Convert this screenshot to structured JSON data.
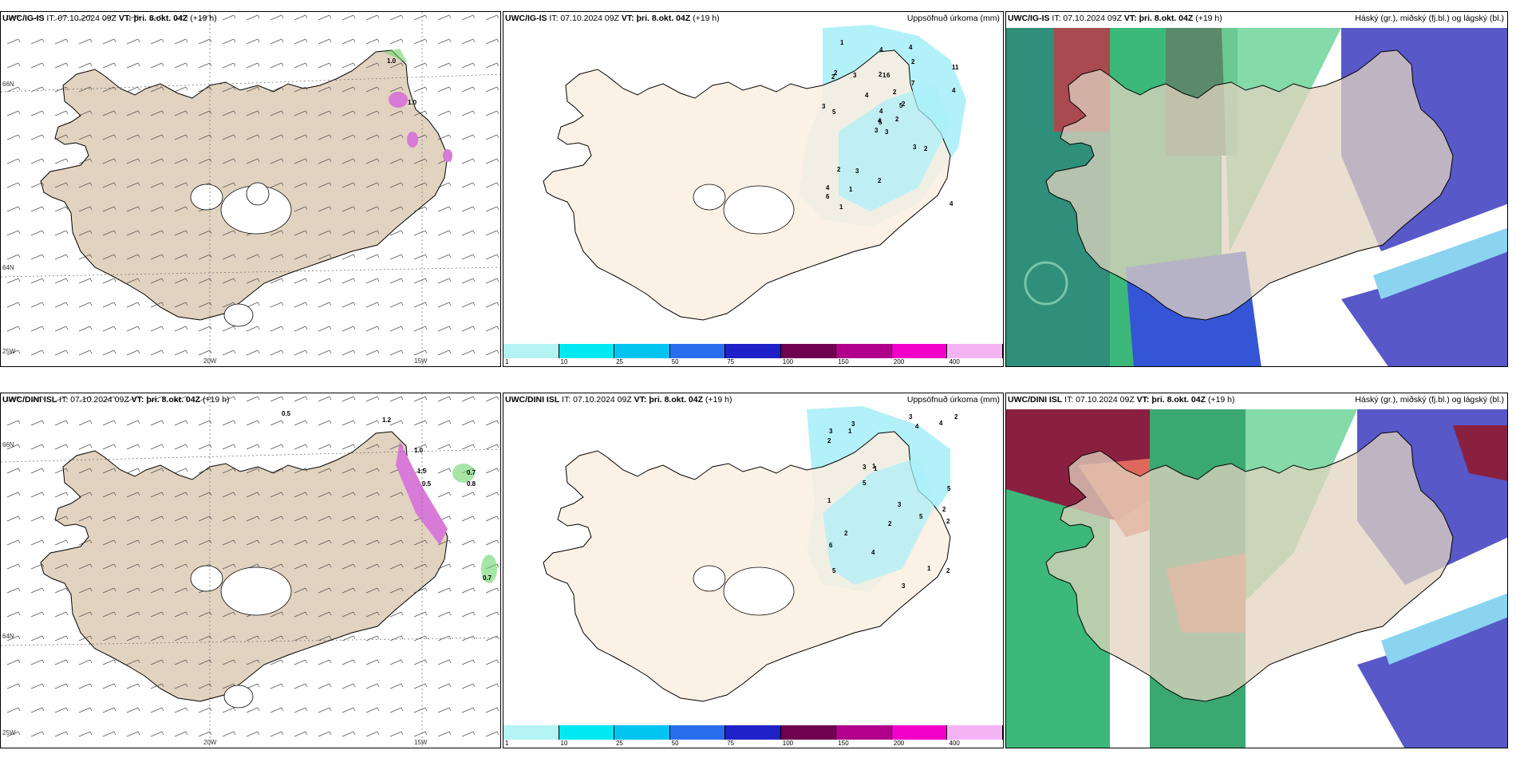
{
  "colors": {
    "land": "#e2d3c0",
    "land_light": "#fbeee0",
    "precip_light": "#aaf0f8",
    "border": "#000000"
  },
  "panels": [
    {
      "id": "r1c1",
      "model": "UWC/IG-IS",
      "it": "IT: 07.10.2024 09Z",
      "vt_label": "VT:",
      "vt_value": "þri. 8.okt. 04Z",
      "lead": "(+19 h)",
      "right_title": ""
    },
    {
      "id": "r1c2",
      "model": "UWC/IG-IS",
      "it": "IT: 07.10.2024 09Z",
      "vt_label": "VT:",
      "vt_value": "þri. 8.okt. 04Z",
      "lead": "(+19 h)",
      "right_title": "Uppsöfnuð úrkoma (mm)"
    },
    {
      "id": "r1c3",
      "model": "UWC/IG-IS",
      "it": "IT: 07.10.2024 09Z",
      "vt_label": "VT:",
      "vt_value": "þri. 8.okt. 04Z",
      "lead": "(+19 h)",
      "right_title": "Háský (gr.), miðský (fj.bl.) og lágský (bl.)"
    },
    {
      "id": "r2c1",
      "model": "UWC/DINI ISL",
      "it": "IT: 07.10.2024 09Z",
      "vt_label": "VT:",
      "vt_value": "þri. 8.okt. 04Z",
      "lead": "(+19 h)",
      "right_title": ""
    },
    {
      "id": "r2c2",
      "model": "UWC/DINI ISL",
      "it": "IT: 07.10.2024 09Z",
      "vt_label": "VT:",
      "vt_value": "þri. 8.okt. 04Z",
      "lead": "(+19 h)",
      "right_title": "Uppsöfnuð úrkoma (mm)"
    },
    {
      "id": "r2c3",
      "model": "UWC/DINI ISL",
      "it": "IT: 07.10.2024 09Z",
      "vt_label": "VT:",
      "vt_value": "þri. 8.okt. 04Z",
      "lead": "(+19 h)",
      "right_title": "Háský (gr.), miðský (fj.bl.) og lágský (bl.)"
    }
  ],
  "coords": {
    "lat_66": "66N",
    "lat_64": "64N",
    "lon_20": "20W",
    "lon_15": "15W",
    "lon_25": "25W"
  },
  "colorbar": {
    "labels": [
      "1",
      "10",
      "25",
      "50",
      "75",
      "100",
      "150",
      "200",
      "400"
    ],
    "colors": [
      "#b4f4f4",
      "#00e8f0",
      "#00c4f0",
      "#2a6ef0",
      "#2020c8",
      "#700050",
      "#b0008c",
      "#f000c8",
      "#f4b4f4"
    ]
  },
  "precip_numbers_ig": [
    "3",
    "2",
    "5",
    "4",
    "5",
    "3",
    "4",
    "6",
    "2",
    "2",
    "1",
    "4",
    "5",
    "11",
    "3",
    "7",
    "1",
    "2",
    "2",
    "2",
    "4",
    "6",
    "1",
    "1",
    "2",
    "2",
    "2",
    "4",
    "3",
    "3",
    "4",
    "4",
    "2",
    "4",
    "3"
  ],
  "precip_numbers_dini": [
    "5",
    "2",
    "5",
    "3",
    "1",
    "1",
    "6",
    "4",
    "3",
    "3",
    "2",
    "1",
    "3",
    "2",
    "4",
    "5",
    "2",
    "3",
    "1",
    "2",
    "2",
    "4",
    "5",
    "2",
    "3",
    "1"
  ],
  "wind_labels_ig": [
    "1.0",
    "1.0"
  ],
  "wind_labels_dini": [
    "0.5",
    "1.2",
    "1.0",
    "1.5",
    "0.5",
    "0.7",
    "0.8",
    "0.7"
  ]
}
